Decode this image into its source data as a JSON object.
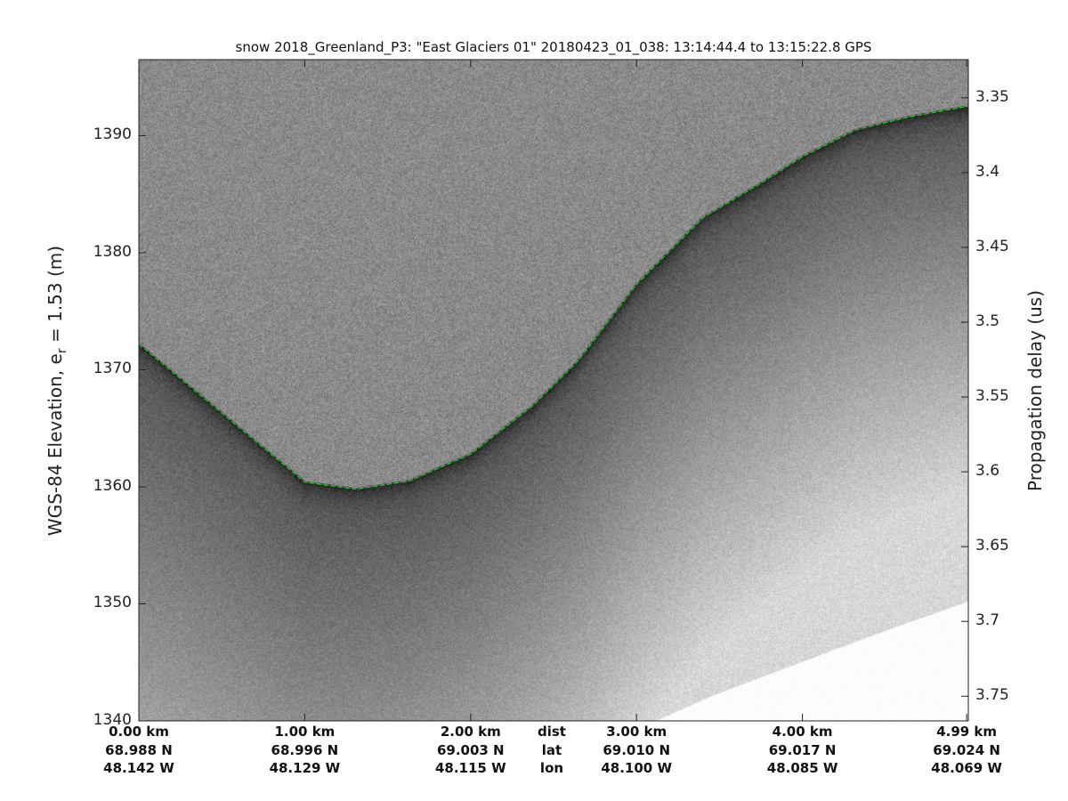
{
  "chart_data": {
    "type": "heatmap",
    "title": "snow 2018_Greenland_P3: \"East Glaciers 01\"  20180423_01_038: 13:14:44.4 to 13:15:22.8 GPS",
    "ylabel_main": "WGS-84 Elevation, e",
    "ylabel_sub": "r",
    "ylabel_tail": " = 1.53 (m)",
    "y2label": "Propagation delay (us)",
    "xlim_km": [
      0,
      4.99
    ],
    "ylim": [
      1340,
      1396.5
    ],
    "y2lim": [
      3.3245,
      3.7665
    ],
    "yticks": [
      1340,
      1350,
      1360,
      1370,
      1380,
      1390
    ],
    "y2ticks": [
      3.35,
      3.4,
      3.45,
      3.5,
      3.55,
      3.6,
      3.65,
      3.7,
      3.75
    ],
    "y2tick_labels": [
      "3.35",
      "3.4",
      "3.45",
      "3.5",
      "3.55",
      "3.6",
      "3.65",
      "3.7",
      "3.75"
    ],
    "colormap": "gray",
    "xticks": [
      {
        "km": 0,
        "dist": "0.00 km",
        "lat": "68.988 N",
        "lon": "48.142 W"
      },
      {
        "km": 1,
        "dist": "1.00 km",
        "lat": "68.996 N",
        "lon": "48.129 W"
      },
      {
        "km": 2,
        "dist": "2.00 km",
        "lat": "69.003 N",
        "lon": "48.115 W"
      },
      {
        "km": 3,
        "dist": "3.00 km",
        "lat": "69.010 N",
        "lon": "48.100 W"
      },
      {
        "km": 4,
        "dist": "4.00 km",
        "lat": "69.017 N",
        "lon": "48.085 W"
      },
      {
        "km": 4.99,
        "dist": "4.99 km",
        "lat": "69.024 N",
        "lon": "48.069 W"
      }
    ],
    "row_labels": {
      "dist": "dist",
      "lat": "lat",
      "lon": "lon"
    },
    "surface_layer": {
      "color": "#22cc22",
      "style": "dashed",
      "x_km": [
        0,
        0.5,
        1.0,
        1.31,
        1.63,
        2.0,
        2.38,
        2.65,
        3.0,
        3.4,
        3.72,
        4.0,
        4.32,
        4.64,
        4.99
      ],
      "elevation": [
        1372.2,
        1366.3,
        1360.4,
        1359.8,
        1360.5,
        1362.8,
        1367.0,
        1370.8,
        1377.3,
        1383.0,
        1385.7,
        1388.2,
        1390.5,
        1391.6,
        1392.5
      ]
    },
    "no_data_boundary": {
      "x_km": [
        3.11,
        3.46,
        4.0,
        4.53,
        4.99
      ],
      "elevation": [
        1340,
        1342.2,
        1345.1,
        1347.9,
        1350.2
      ]
    }
  }
}
